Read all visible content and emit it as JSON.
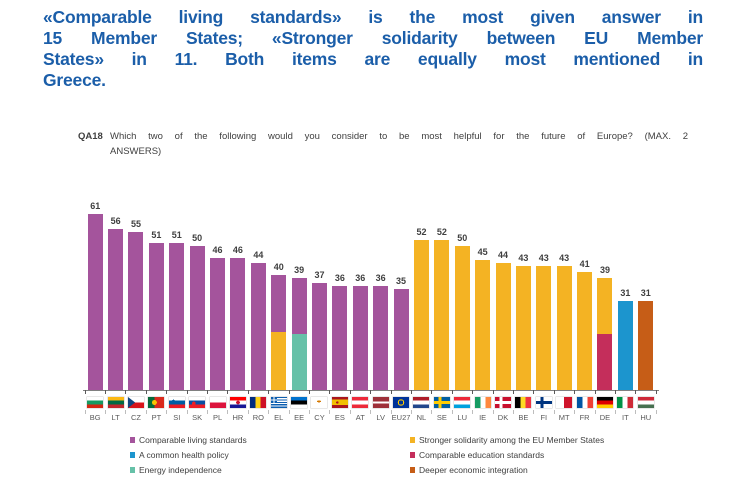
{
  "headline": {
    "color": "#1B5EA9",
    "lines": [
      "«Comparable living standards» is the most given answer in",
      "15 Member States; «Stronger solidarity between EU Member",
      "States» in 11. Both items are equally most mentioned in",
      "Greece."
    ]
  },
  "question": {
    "code": "QA18",
    "lines": [
      "Which two of the following would you consider to be most helpful for the future of Europe? (MAX. 2",
      "ANSWERS)"
    ]
  },
  "chart_data": {
    "type": "bar",
    "stacked": true,
    "ylim": [
      0,
      65
    ],
    "grid": false,
    "legend_position": "bottom",
    "colors": {
      "living": "#A4549C",
      "health": "#1C95CE",
      "energy": "#66C1A8",
      "solidarity": "#F4B323",
      "education": "#C42E5B",
      "integration": "#C65D17"
    },
    "categories": [
      "BG",
      "LT",
      "CZ",
      "PT",
      "SI",
      "SK",
      "PL",
      "HR",
      "RO",
      "EL",
      "EE",
      "CY",
      "ES",
      "AT",
      "LV",
      "EU27",
      "NL",
      "SE",
      "LU",
      "IE",
      "DK",
      "BE",
      "FI",
      "MT",
      "FR",
      "DE",
      "IT",
      "HU"
    ],
    "values": [
      61,
      56,
      55,
      51,
      51,
      50,
      46,
      46,
      44,
      40,
      39,
      37,
      36,
      36,
      36,
      35,
      52,
      52,
      50,
      45,
      44,
      43,
      43,
      43,
      41,
      39,
      31,
      31
    ],
    "bars": [
      {
        "code": "BG",
        "total": 61,
        "segments": [
          {
            "key": "living",
            "value": 61
          }
        ]
      },
      {
        "code": "LT",
        "total": 56,
        "segments": [
          {
            "key": "living",
            "value": 56
          }
        ]
      },
      {
        "code": "CZ",
        "total": 55,
        "segments": [
          {
            "key": "living",
            "value": 55
          }
        ]
      },
      {
        "code": "PT",
        "total": 51,
        "segments": [
          {
            "key": "living",
            "value": 51
          }
        ]
      },
      {
        "code": "SI",
        "total": 51,
        "segments": [
          {
            "key": "living",
            "value": 51
          }
        ]
      },
      {
        "code": "SK",
        "total": 50,
        "segments": [
          {
            "key": "living",
            "value": 50
          }
        ]
      },
      {
        "code": "PL",
        "total": 46,
        "segments": [
          {
            "key": "living",
            "value": 46
          }
        ]
      },
      {
        "code": "HR",
        "total": 46,
        "segments": [
          {
            "key": "living",
            "value": 46
          }
        ]
      },
      {
        "code": "RO",
        "total": 44,
        "segments": [
          {
            "key": "living",
            "value": 44
          }
        ]
      },
      {
        "code": "EL",
        "total": 40,
        "segments": [
          {
            "key": "solidarity",
            "value": 20
          },
          {
            "key": "living",
            "value": 20
          }
        ]
      },
      {
        "code": "EE",
        "total": 39,
        "segments": [
          {
            "key": "energy",
            "value": 19.5
          },
          {
            "key": "living",
            "value": 19.5
          }
        ]
      },
      {
        "code": "CY",
        "total": 37,
        "segments": [
          {
            "key": "living",
            "value": 37
          }
        ]
      },
      {
        "code": "ES",
        "total": 36,
        "segments": [
          {
            "key": "living",
            "value": 36
          }
        ]
      },
      {
        "code": "AT",
        "total": 36,
        "segments": [
          {
            "key": "living",
            "value": 36
          }
        ]
      },
      {
        "code": "LV",
        "total": 36,
        "segments": [
          {
            "key": "living",
            "value": 36
          }
        ]
      },
      {
        "code": "EU27",
        "total": 35,
        "segments": [
          {
            "key": "living",
            "value": 35
          }
        ]
      },
      {
        "code": "NL",
        "total": 52,
        "segments": [
          {
            "key": "solidarity",
            "value": 52
          }
        ]
      },
      {
        "code": "SE",
        "total": 52,
        "segments": [
          {
            "key": "solidarity",
            "value": 52
          }
        ]
      },
      {
        "code": "LU",
        "total": 50,
        "segments": [
          {
            "key": "solidarity",
            "value": 50
          }
        ]
      },
      {
        "code": "IE",
        "total": 45,
        "segments": [
          {
            "key": "solidarity",
            "value": 45
          }
        ]
      },
      {
        "code": "DK",
        "total": 44,
        "segments": [
          {
            "key": "solidarity",
            "value": 44
          }
        ]
      },
      {
        "code": "BE",
        "total": 43,
        "segments": [
          {
            "key": "solidarity",
            "value": 43
          }
        ]
      },
      {
        "code": "FI",
        "total": 43,
        "segments": [
          {
            "key": "solidarity",
            "value": 43
          }
        ]
      },
      {
        "code": "MT",
        "total": 43,
        "segments": [
          {
            "key": "solidarity",
            "value": 43
          }
        ]
      },
      {
        "code": "FR",
        "total": 41,
        "segments": [
          {
            "key": "solidarity",
            "value": 41
          }
        ]
      },
      {
        "code": "DE",
        "total": 39,
        "segments": [
          {
            "key": "education",
            "value": 19.5
          },
          {
            "key": "solidarity",
            "value": 19.5
          }
        ]
      },
      {
        "code": "IT",
        "total": 31,
        "segments": [
          {
            "key": "health",
            "value": 31
          }
        ]
      },
      {
        "code": "HU",
        "total": 31,
        "segments": [
          {
            "key": "integration",
            "value": 31
          }
        ]
      }
    ],
    "legend": [
      {
        "key": "living",
        "label": "Comparable living standards",
        "column": 1
      },
      {
        "key": "health",
        "label": "A common health policy",
        "column": 1
      },
      {
        "key": "energy",
        "label": "Energy independence",
        "column": 1
      },
      {
        "key": "solidarity",
        "label": "Stronger solidarity among the EU Member States",
        "column": 2
      },
      {
        "key": "education",
        "label": "Comparable education standards",
        "column": 2
      },
      {
        "key": "integration",
        "label": "Deeper economic integration",
        "column": 2
      }
    ]
  }
}
